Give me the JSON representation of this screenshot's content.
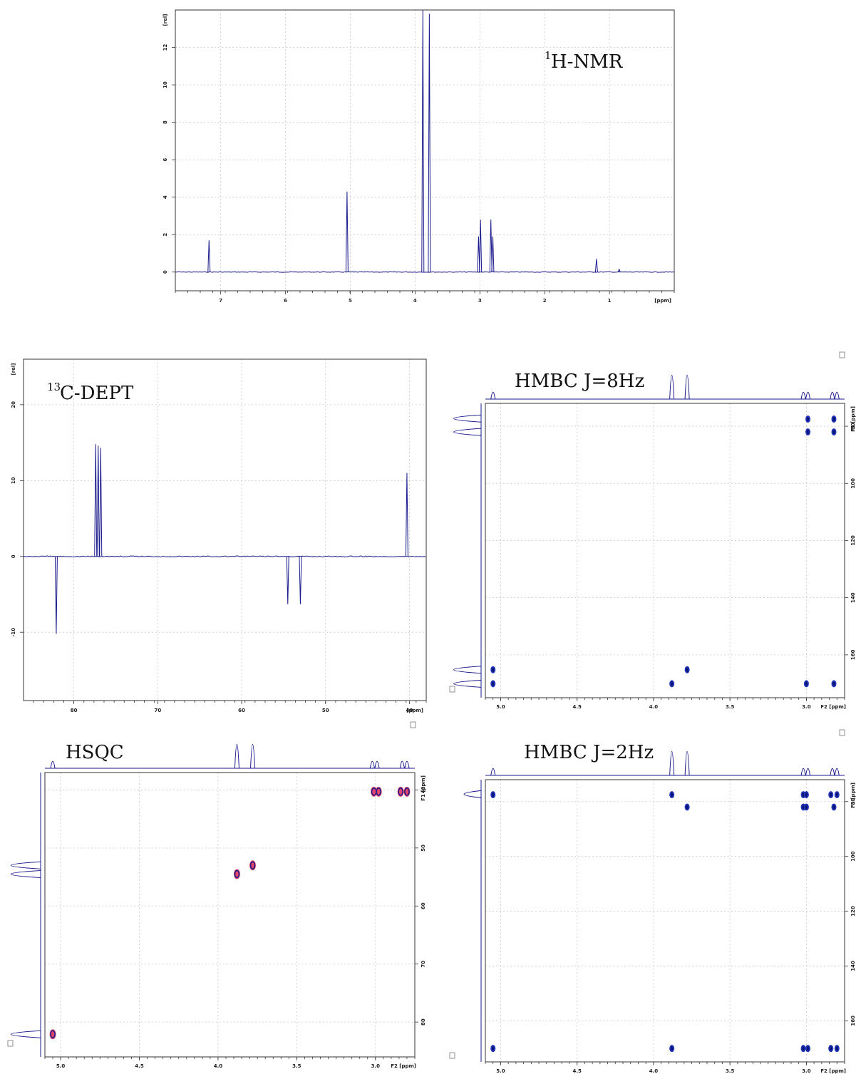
{
  "chart_data": [
    {
      "type": "line",
      "title_sup": "1",
      "title": "H-NMR",
      "xlabel": "[ppm]",
      "ylabel": "[rel]",
      "xlim": [
        7.7,
        0.0
      ],
      "ylim": [
        -1,
        14
      ],
      "x_ticks": [
        "7",
        "6",
        "5",
        "4",
        "3",
        "2",
        "1"
      ],
      "y_ticks": [
        "0",
        "2",
        "4",
        "6",
        "8",
        "10",
        "12"
      ],
      "peaks": [
        {
          "x": 7.18,
          "y": 1.7
        },
        {
          "x": 5.05,
          "y": 4.3
        },
        {
          "x": 3.88,
          "y": 14.5
        },
        {
          "x": 3.78,
          "y": 13.8
        },
        {
          "x": 3.02,
          "y": 1.9
        },
        {
          "x": 2.99,
          "y": 2.8
        },
        {
          "x": 2.83,
          "y": 2.8
        },
        {
          "x": 2.8,
          "y": 1.9
        },
        {
          "x": 1.2,
          "y": 0.7
        },
        {
          "x": 0.85,
          "y": 0.15
        }
      ]
    },
    {
      "type": "line",
      "title_sup": "13",
      "title": "C-DEPT",
      "xlabel": "[ppm]",
      "ylabel": "[rel]",
      "xlim": [
        86,
        38
      ],
      "ylim": [
        -19,
        26
      ],
      "x_ticks": [
        "80",
        "70",
        "60",
        "50",
        "40"
      ],
      "y_ticks": [
        "-10",
        "0",
        "10",
        "20"
      ],
      "peaks": [
        {
          "x": 82.1,
          "y": -10.2
        },
        {
          "x": 77.4,
          "y": 14.8
        },
        {
          "x": 77.1,
          "y": 14.6
        },
        {
          "x": 76.8,
          "y": 14.3
        },
        {
          "x": 54.5,
          "y": -6.3
        },
        {
          "x": 53.0,
          "y": -6.3
        },
        {
          "x": 40.3,
          "y": 11.0
        }
      ]
    },
    {
      "type": "scatter",
      "title": "HMBC J=8Hz",
      "xlabel": "F2 [ppm]",
      "ylabel": "F1 [ppm]",
      "xlim": [
        5.1,
        2.75
      ],
      "ylim": [
        175,
        72
      ],
      "x_ticks": [
        "5.0",
        "4.5",
        "4.0",
        "3.5",
        "3.0"
      ],
      "y_ticks": [
        "80",
        "100",
        "120",
        "140",
        "160"
      ],
      "projection_f2": [
        5.05,
        3.88,
        3.78,
        3.02,
        2.99,
        2.83,
        2.8
      ],
      "projection_f1": [
        82.0,
        77.3,
        165.2,
        170.1
      ],
      "cross_peaks": [
        {
          "x": 2.99,
          "y": 77.5
        },
        {
          "x": 2.99,
          "y": 82.0
        },
        {
          "x": 2.82,
          "y": 77.5
        },
        {
          "x": 2.82,
          "y": 82.0
        },
        {
          "x": 5.05,
          "y": 165.2
        },
        {
          "x": 5.05,
          "y": 170.1
        },
        {
          "x": 3.88,
          "y": 170.1
        },
        {
          "x": 3.78,
          "y": 165.2
        },
        {
          "x": 3.0,
          "y": 170.1
        },
        {
          "x": 2.82,
          "y": 170.1
        }
      ]
    },
    {
      "type": "scatter",
      "title": "HSQC",
      "xlabel": "F2 [ppm]",
      "ylabel": "F1 [ppm]",
      "xlim": [
        5.1,
        2.75
      ],
      "ylim": [
        86,
        37
      ],
      "x_ticks": [
        "5.0",
        "4.5",
        "4.0",
        "3.5",
        "3.0",
        ""
      ],
      "y_ticks": [
        "40",
        "50",
        "60",
        "70",
        "80"
      ],
      "projection_f2": [
        5.05,
        3.88,
        3.78,
        3.02,
        2.99,
        2.83,
        2.8
      ],
      "projection_f1": [
        82.1,
        54.5,
        53.0
      ],
      "cross_peaks": [
        {
          "x": 3.01,
          "y": 40.3
        },
        {
          "x": 2.98,
          "y": 40.3
        },
        {
          "x": 2.84,
          "y": 40.3
        },
        {
          "x": 2.8,
          "y": 40.3
        },
        {
          "x": 3.88,
          "y": 54.5
        },
        {
          "x": 3.78,
          "y": 53.0
        },
        {
          "x": 5.05,
          "y": 82.1
        }
      ]
    },
    {
      "type": "scatter",
      "title": "HMBC J=2Hz",
      "xlabel": "F2 [ppm]",
      "ylabel": "F1 [ppm]",
      "xlim": [
        5.1,
        2.75
      ],
      "ylim": [
        175,
        72
      ],
      "x_ticks": [
        "5.0",
        "4.5",
        "4.0",
        "3.5",
        "3.0"
      ],
      "y_ticks": [
        "80",
        "100",
        "120",
        "140",
        "160"
      ],
      "projection_f2": [
        5.05,
        3.88,
        3.78,
        3.02,
        2.99,
        2.83,
        2.8
      ],
      "projection_f1": [
        77.3
      ],
      "cross_peaks": [
        {
          "x": 5.05,
          "y": 77.5
        },
        {
          "x": 3.88,
          "y": 77.5
        },
        {
          "x": 3.78,
          "y": 82.0
        },
        {
          "x": 3.02,
          "y": 77.5
        },
        {
          "x": 3.0,
          "y": 77.5
        },
        {
          "x": 3.02,
          "y": 82.0
        },
        {
          "x": 3.0,
          "y": 82.0
        },
        {
          "x": 2.84,
          "y": 77.5
        },
        {
          "x": 2.8,
          "y": 77.5
        },
        {
          "x": 2.82,
          "y": 82.0
        },
        {
          "x": 5.05,
          "y": 170.1
        },
        {
          "x": 3.88,
          "y": 170.1
        },
        {
          "x": 3.02,
          "y": 170.1
        },
        {
          "x": 2.99,
          "y": 170.1
        },
        {
          "x": 2.84,
          "y": 170.1
        },
        {
          "x": 2.8,
          "y": 170.1
        }
      ]
    }
  ]
}
